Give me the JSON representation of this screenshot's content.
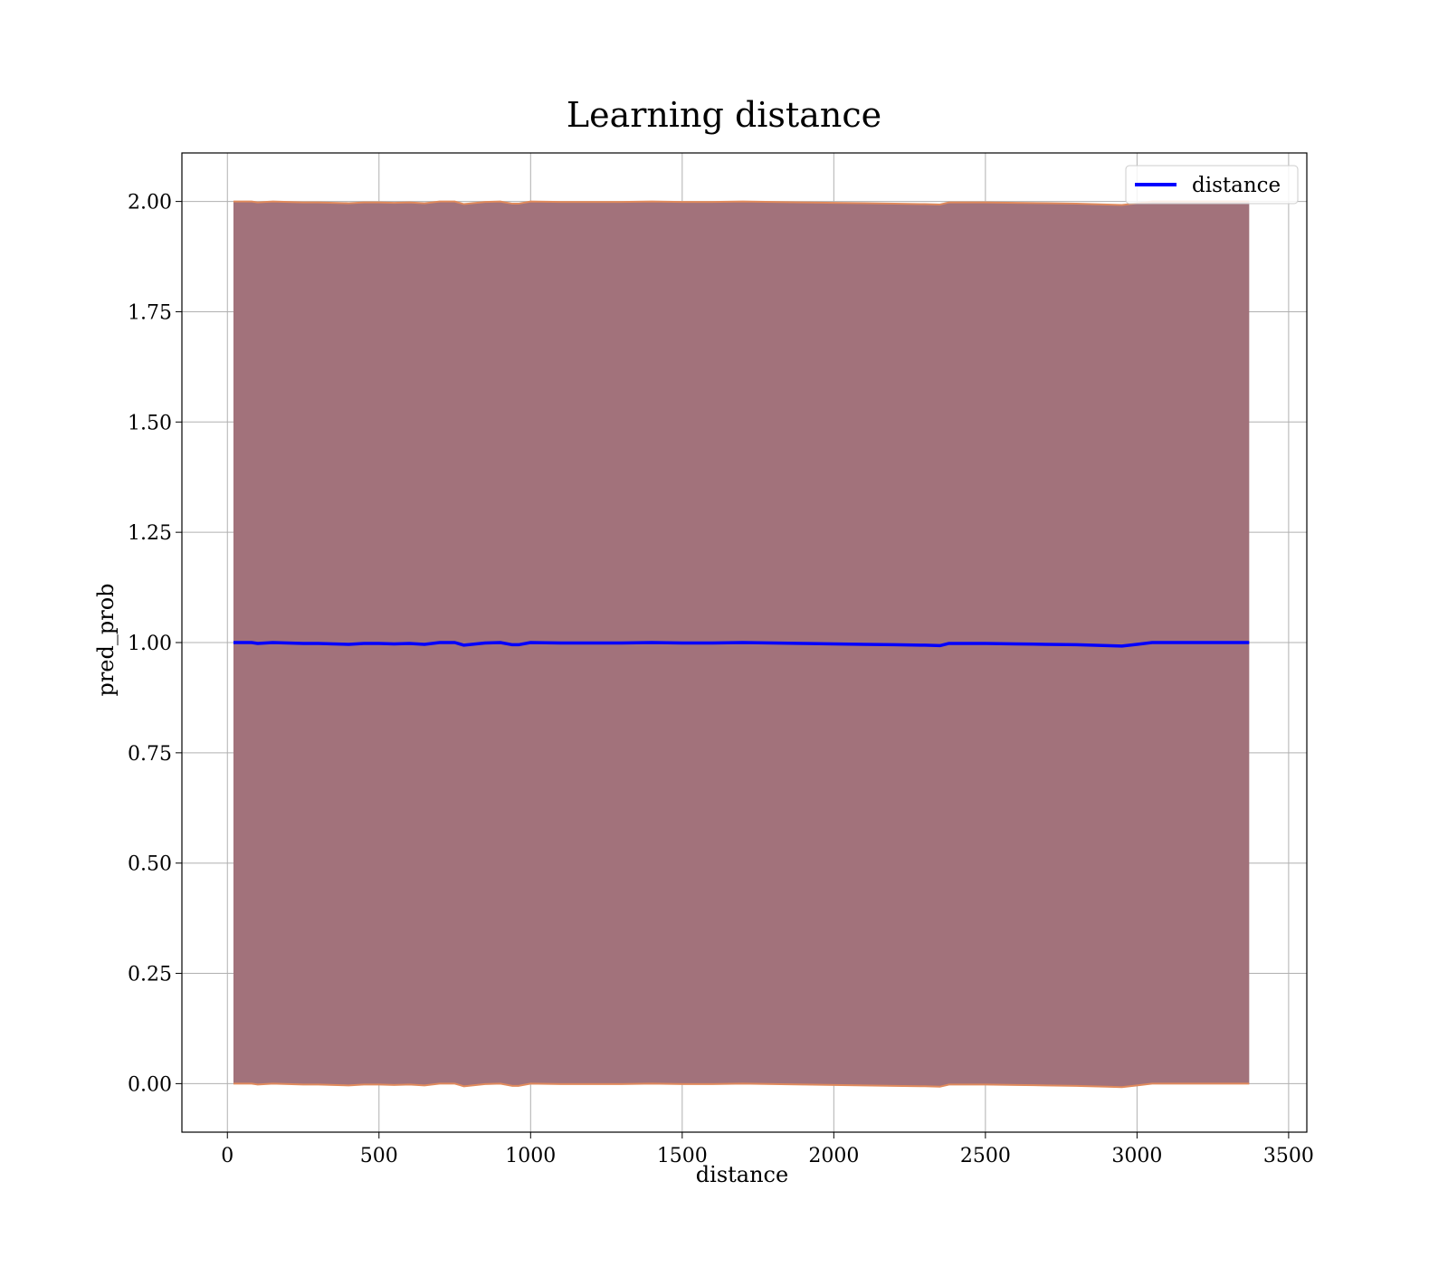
{
  "chart_data": {
    "type": "line",
    "title": "Learning distance",
    "xlabel": "distance",
    "ylabel": "pred_prob",
    "xlim": [
      -150,
      3560
    ],
    "ylim": [
      -0.11,
      2.11
    ],
    "xticks": [
      0,
      500,
      1000,
      1500,
      2000,
      2500,
      3000,
      3500
    ],
    "yticks": [
      0.0,
      0.25,
      0.5,
      0.75,
      1.0,
      1.25,
      1.5,
      1.75,
      2.0
    ],
    "xtick_labels": [
      "0",
      "500",
      "1000",
      "1500",
      "2000",
      "2500",
      "3000",
      "3500"
    ],
    "ytick_labels": [
      "0.00",
      "0.25",
      "0.50",
      "0.75",
      "1.00",
      "1.25",
      "1.50",
      "1.75",
      "2.00"
    ],
    "grid": true,
    "legend": {
      "entries": [
        "distance"
      ],
      "placement": "top-right"
    },
    "series": [
      {
        "name": "distance",
        "color": "#0000ff",
        "x": [
          20,
          80,
          100,
          150,
          200,
          250,
          300,
          350,
          400,
          450,
          500,
          550,
          600,
          650,
          700,
          750,
          780,
          850,
          900,
          940,
          960,
          1000,
          1100,
          1200,
          1300,
          1400,
          1500,
          1600,
          1700,
          1800,
          1900,
          2000,
          2100,
          2200,
          2300,
          2350,
          2380,
          2400,
          2500,
          2600,
          2700,
          2800,
          2900,
          2950,
          3000,
          3050,
          3100,
          3200,
          3300,
          3370
        ],
        "y": [
          1.0,
          1.0,
          0.998,
          1.0,
          0.999,
          0.998,
          0.998,
          0.997,
          0.996,
          0.998,
          0.998,
          0.997,
          0.998,
          0.996,
          1.0,
          1.0,
          0.994,
          0.999,
          1.0,
          0.995,
          0.995,
          1.0,
          0.999,
          0.999,
          0.999,
          1.0,
          0.999,
          0.999,
          1.0,
          0.999,
          0.998,
          0.997,
          0.996,
          0.995,
          0.994,
          0.993,
          0.998,
          0.998,
          0.998,
          0.997,
          0.996,
          0.995,
          0.993,
          0.992,
          0.996,
          1.0,
          1.0,
          1.0,
          1.0,
          1.0
        ]
      }
    ],
    "band": {
      "fill_color": "#a2727b",
      "edge_color": "#e08a5c",
      "x": [
        20,
        3370
      ],
      "lower": [
        0.0,
        0.0
      ],
      "upper": [
        2.0,
        2.0
      ]
    }
  }
}
